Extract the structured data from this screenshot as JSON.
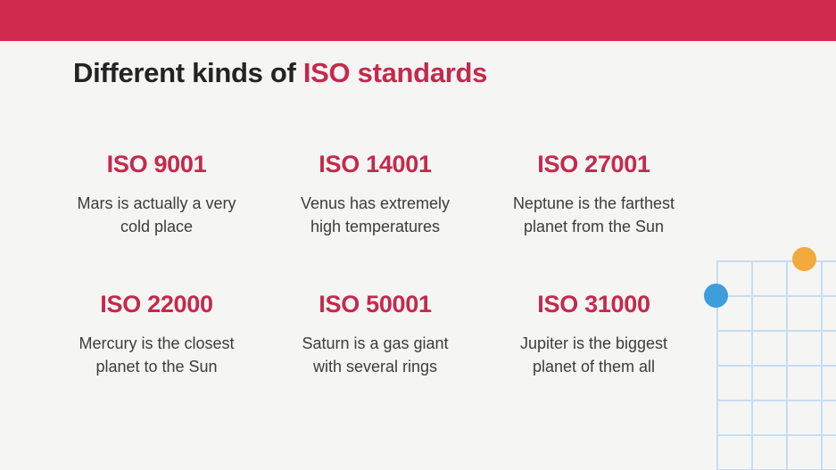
{
  "slide": {
    "title": {
      "prefix": "Different kinds of ",
      "highlight": "ISO standards"
    },
    "items": [
      {
        "heading": "ISO 9001",
        "line1": "Mars is actually a very",
        "line2": "cold place"
      },
      {
        "heading": "ISO 14001",
        "line1": "Venus has extremely",
        "line2": "high temperatures"
      },
      {
        "heading": "ISO 27001",
        "line1": "Neptune is the farthest",
        "line2": "planet from the Sun"
      },
      {
        "heading": "ISO 22000",
        "line1": "Mercury is the closest",
        "line2": "planet to the Sun"
      },
      {
        "heading": "ISO 50001",
        "line1": "Saturn is a gas giant",
        "line2": "with several rings"
      },
      {
        "heading": "ISO 31000",
        "line1": "Jupiter is the biggest",
        "line2": "planet of them all"
      }
    ],
    "colors": {
      "top_bar_red": "#D02B4E",
      "accent_red": "#C5294B",
      "background": "#F5F5F4",
      "title_dark": "#232323",
      "body_text": "#3C3C3C",
      "grid_line_blue": "#C7DDF0",
      "dot_blue": "#3D9EDB",
      "dot_orange": "#F3A93C"
    },
    "decorations": [
      "grid-pattern",
      "orange-dot",
      "blue-dot"
    ]
  }
}
